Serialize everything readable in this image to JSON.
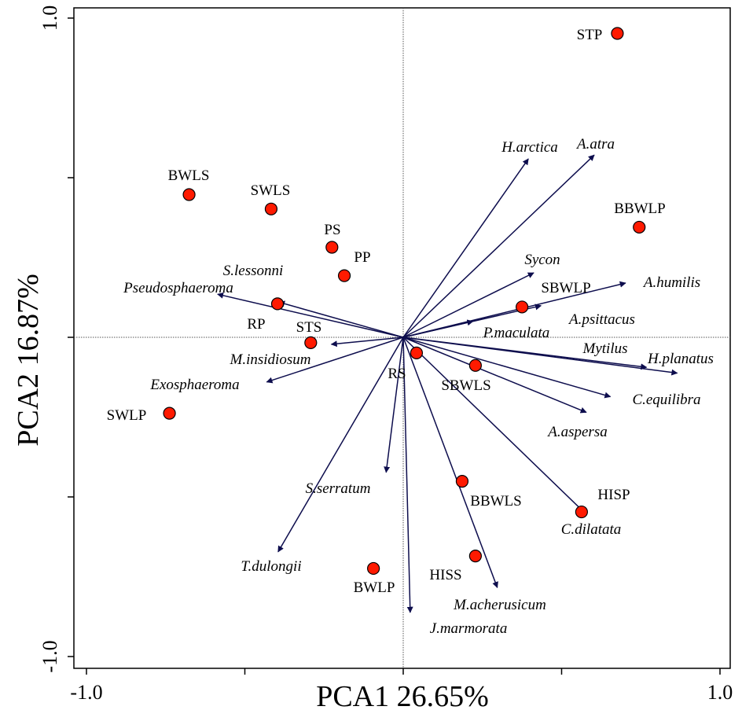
{
  "chart_data": {
    "type": "scatter",
    "xlabel": "PCA1 26.65%",
    "ylabel": "PCA2 16.87%",
    "xlim": [
      -1.0,
      1.0
    ],
    "ylim": [
      -1.0,
      1.0
    ],
    "x_tick_labels": [
      {
        "value": -1.0,
        "label": "-1.0"
      },
      {
        "value": 1.0,
        "label": "1.0"
      }
    ],
    "y_tick_labels": [
      {
        "value": 1.0,
        "label": "1.0"
      },
      {
        "value": -1.0,
        "label": "-1.0"
      }
    ],
    "zero_lines": true,
    "colors": {
      "site_fill": "#ff1a00",
      "arrow": "#0d0d4d",
      "axis": "#000000"
    },
    "sites": [
      {
        "name": "STP",
        "x": 0.676,
        "y": 0.952
      },
      {
        "name": "BWLS",
        "x": -0.676,
        "y": 0.447
      },
      {
        "name": "SWLS",
        "x": -0.417,
        "y": 0.402
      },
      {
        "name": "PS",
        "x": -0.225,
        "y": 0.282
      },
      {
        "name": "PP",
        "x": -0.186,
        "y": 0.193
      },
      {
        "name": "BBWLP",
        "x": 0.745,
        "y": 0.345
      },
      {
        "name": "RP",
        "x": -0.397,
        "y": 0.105
      },
      {
        "name": "STS",
        "x": -0.292,
        "y": -0.017
      },
      {
        "name": "SBWLP",
        "x": 0.375,
        "y": 0.095
      },
      {
        "name": "RS",
        "x": 0.042,
        "y": -0.049
      },
      {
        "name": "SBWLS",
        "x": 0.228,
        "y": -0.088
      },
      {
        "name": "SWLP",
        "x": -0.738,
        "y": -0.238
      },
      {
        "name": "BBWLS",
        "x": 0.186,
        "y": -0.451
      },
      {
        "name": "HISP",
        "x": 0.563,
        "y": -0.547
      },
      {
        "name": "BWLP",
        "x": -0.094,
        "y": -0.724
      },
      {
        "name": "HISS",
        "x": 0.228,
        "y": -0.685
      }
    ],
    "species": [
      {
        "name": "H.arctica",
        "x": 0.395,
        "y": 0.559
      },
      {
        "name": "A.atra",
        "x": 0.603,
        "y": 0.571
      },
      {
        "name": "Sycon",
        "x": 0.412,
        "y": 0.202
      },
      {
        "name": "A.humilis",
        "x": 0.702,
        "y": 0.17
      },
      {
        "name": "A.psittacus",
        "x": 0.435,
        "y": 0.099
      },
      {
        "name": "P.maculata",
        "x": 0.22,
        "y": 0.05
      },
      {
        "name": "Mytilus",
        "x": 0.768,
        "y": -0.094
      },
      {
        "name": "H.planatus",
        "x": 0.865,
        "y": -0.112
      },
      {
        "name": "C.equilibra",
        "x": 0.654,
        "y": -0.186
      },
      {
        "name": "A.aspersa",
        "x": 0.578,
        "y": -0.235
      },
      {
        "name": "C.dilatata",
        "x": 0.569,
        "y": -0.546
      },
      {
        "name": "M.acherusicum",
        "x": 0.297,
        "y": -0.784
      },
      {
        "name": "J.marmorata",
        "x": 0.022,
        "y": -0.862
      },
      {
        "name": "S.serratum",
        "x": -0.054,
        "y": -0.423
      },
      {
        "name": "T.dulongii",
        "x": -0.395,
        "y": -0.672
      },
      {
        "name": "Exosphaeroma",
        "x": -0.431,
        "y": -0.14
      },
      {
        "name": "M.insidiosum",
        "x": -0.227,
        "y": -0.022
      },
      {
        "name": "Pseudosphaeroma",
        "x": -0.586,
        "y": 0.135
      },
      {
        "name": "S.lessonni",
        "x": -0.392,
        "y": 0.11
      }
    ]
  }
}
